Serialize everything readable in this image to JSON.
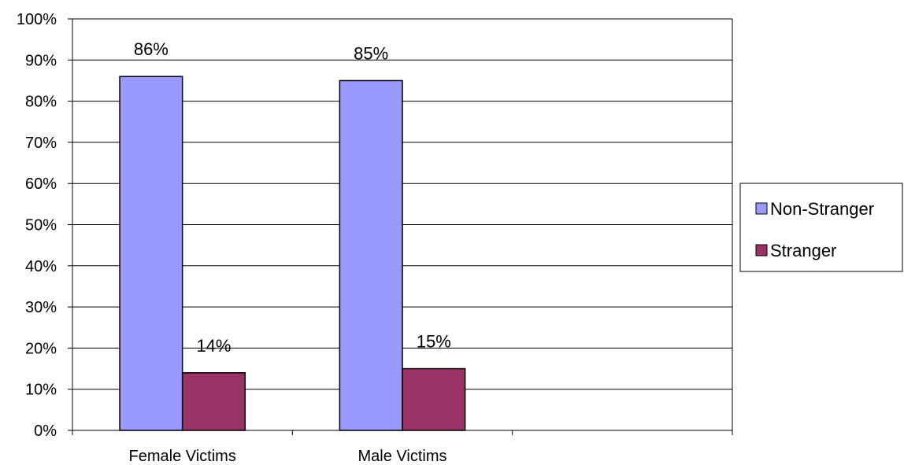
{
  "chart_data": {
    "type": "bar",
    "categories": [
      "Female Victims",
      "Male Victims",
      ""
    ],
    "series": [
      {
        "name": "Non-Stranger",
        "values": [
          86,
          85,
          null
        ],
        "labels": [
          "86%",
          "85%",
          ""
        ],
        "color": "#9999FF"
      },
      {
        "name": "Stranger",
        "values": [
          14,
          15,
          null
        ],
        "labels": [
          "14%",
          "15%",
          ""
        ],
        "color": "#993366"
      }
    ],
    "ylim": [
      0,
      100
    ],
    "yticks": [
      "0%",
      "10%",
      "20%",
      "30%",
      "40%",
      "50%",
      "60%",
      "70%",
      "80%",
      "90%",
      "100%"
    ],
    "grid": true,
    "legend_position": "right"
  }
}
